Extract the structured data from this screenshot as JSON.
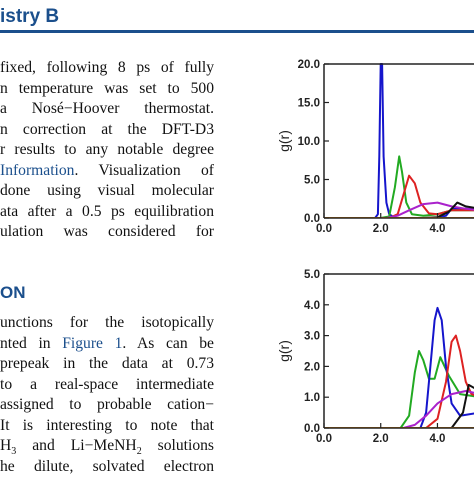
{
  "header": {
    "journal": "istry B"
  },
  "body_lines": [
    "fixed, following 8 ps of fully",
    "n temperature was set to 500",
    "a Nosé−Hoover thermostat.",
    "n correction at the DFT-D3",
    "r results to any notable degree",
    {
      "link": " Information",
      "rest": ". Visualization of"
    },
    "done using visual molecular",
    "ata after a 0.5 ps equilibration",
    "ulation was considered for"
  ],
  "section_heading": "ON",
  "body2_lines": [
    "unctions for the isotopically",
    {
      "pre": "nted in ",
      "link": "Figure 1",
      "rest": ". As can be"
    },
    "prepeak in the data at 0.73",
    "to a real-space intermediate",
    "assigned to probable cation−",
    "It is interesting to note that",
    {
      "pre": "H",
      "sub1": "3",
      "mid": " and Li−MeNH",
      "sub2": "2",
      "rest": " solutions"
    },
    "he dilute, solvated electron"
  ],
  "chart_data": [
    {
      "type": "line",
      "ylabel": "g(r)",
      "xlim": [
        0,
        5.5
      ],
      "ylim": [
        0,
        20
      ],
      "xticks": [
        "0.0",
        "2.0",
        "4.0"
      ],
      "yticks": [
        "0.0",
        "5.0",
        "10.0",
        "15.0",
        "20.0"
      ],
      "series": [
        {
          "color": "#1515cc",
          "x": [
            1.8,
            1.9,
            1.95,
            2.0,
            2.05,
            2.1,
            2.2,
            2.3,
            2.5,
            3.0,
            3.5,
            4.0,
            4.3,
            4.5,
            5.5
          ],
          "y": [
            0,
            0.5,
            8,
            20,
            20,
            8,
            2,
            0.5,
            0,
            0,
            0,
            0,
            0.3,
            1.2,
            1.2
          ]
        },
        {
          "color": "#22aa22",
          "x": [
            2.0,
            2.3,
            2.5,
            2.65,
            2.75,
            2.9,
            3.1,
            3.5,
            4.0,
            4.5,
            5.5
          ],
          "y": [
            0,
            0.2,
            4,
            8,
            6,
            2,
            0.5,
            0.3,
            0.5,
            1.0,
            1.0
          ]
        },
        {
          "color": "#dd2222",
          "x": [
            2.3,
            2.6,
            2.8,
            3.0,
            3.2,
            3.4,
            3.7,
            4.0,
            4.5,
            5.5
          ],
          "y": [
            0,
            0.5,
            3,
            5.5,
            4.5,
            2,
            0.6,
            0.5,
            1.0,
            1.0
          ]
        },
        {
          "color": "#aa22cc",
          "x": [
            2.2,
            2.6,
            3.0,
            3.5,
            4.0,
            4.5,
            5.0,
            5.5
          ],
          "y": [
            0,
            0.3,
            1.0,
            1.8,
            2.0,
            1.5,
            1.2,
            1.0
          ]
        },
        {
          "color": "#111111",
          "x": [
            3.5,
            4.0,
            4.4,
            4.7,
            5.0,
            5.5
          ],
          "y": [
            0,
            0.1,
            0.8,
            2.0,
            1.5,
            1.2
          ]
        },
        {
          "color": "#ee8800",
          "x": [
            0,
            5.5
          ],
          "y": [
            0,
            0
          ]
        }
      ]
    },
    {
      "type": "line",
      "ylabel": "g(r)",
      "xlim": [
        0,
        5.5
      ],
      "ylim": [
        0,
        5
      ],
      "xticks": [
        "0.0",
        "2.0",
        "4.0"
      ],
      "yticks": [
        "0.0",
        "1.0",
        "2.0",
        "3.0",
        "4.0",
        "5.0"
      ],
      "series": [
        {
          "color": "#22aa22",
          "x": [
            2.7,
            3.0,
            3.2,
            3.35,
            3.5,
            3.7,
            3.9,
            4.1,
            4.4,
            4.8,
            5.5
          ],
          "y": [
            0,
            0.4,
            1.8,
            2.5,
            2.2,
            1.6,
            1.6,
            2.3,
            1.7,
            1.1,
            1.0
          ]
        },
        {
          "color": "#1515cc",
          "x": [
            3.4,
            3.6,
            3.8,
            3.9,
            4.0,
            4.15,
            4.3,
            4.5,
            4.8,
            5.5
          ],
          "y": [
            0,
            0.5,
            2.5,
            3.5,
            3.9,
            3.5,
            2.0,
            0.8,
            0.4,
            0.5
          ]
        },
        {
          "color": "#dd2222",
          "x": [
            3.6,
            4.0,
            4.3,
            4.5,
            4.65,
            4.8,
            5.0,
            5.2,
            5.5
          ],
          "y": [
            0,
            0.3,
            1.5,
            2.8,
            3.0,
            2.5,
            1.5,
            1.1,
            1.0
          ]
        },
        {
          "color": "#aa22cc",
          "x": [
            2.8,
            3.2,
            3.6,
            4.0,
            4.5,
            5.0,
            5.5
          ],
          "y": [
            0,
            0.1,
            0.4,
            0.8,
            1.1,
            1.2,
            1.1
          ]
        },
        {
          "color": "#111111",
          "x": [
            3.8,
            4.5,
            4.9,
            5.1,
            5.3,
            5.5
          ],
          "y": [
            0,
            0,
            0.5,
            1.4,
            1.3,
            1.2
          ]
        },
        {
          "color": "#ee8800",
          "x": [
            0,
            5.5
          ],
          "y": [
            0,
            0
          ]
        }
      ]
    }
  ]
}
